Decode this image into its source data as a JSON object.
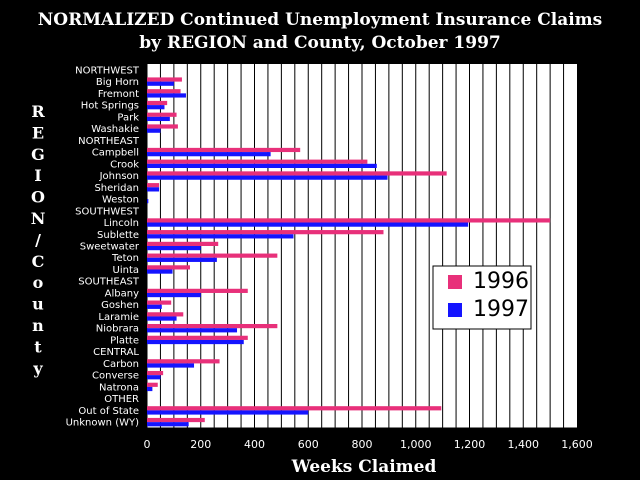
{
  "chart_data": {
    "type": "bar",
    "orientation": "horizontal",
    "title": "NORMALIZED Continued Unemployment Insurance Claims",
    "subtitle": "by REGION and County, October 1997",
    "xlabel": "Weeks Claimed",
    "ylabel": "REGION/County",
    "xlim": [
      0,
      1600
    ],
    "xticks": [
      "0",
      "200",
      "400",
      "600",
      "800",
      "1,000",
      "1,200",
      "1,400",
      "1,600"
    ],
    "grid": true,
    "legend_position": "right",
    "categories": [
      "NORTHWEST",
      "Big Horn",
      "Fremont",
      "Hot Springs",
      "Park",
      "Washakie",
      "NORTHEAST",
      "Campbell",
      "Crook",
      "Johnson",
      "Sheridan",
      "Weston",
      "SOUTHWEST",
      "Lincoln",
      "Sublette",
      "Sweetwater",
      "Teton",
      "Uinta",
      "SOUTHEAST",
      "Albany",
      "Goshen",
      "Laramie",
      "Niobrara",
      "Platte",
      "CENTRAL",
      "Carbon",
      "Converse",
      "Natrona",
      "OTHER",
      "Out of State",
      "Unknown (WY)"
    ],
    "series": [
      {
        "name": "1996",
        "color": "#e8307a",
        "values": [
          null,
          130,
          125,
          75,
          110,
          115,
          null,
          570,
          820,
          1115,
          45,
          0,
          null,
          1500,
          880,
          265,
          485,
          160,
          null,
          375,
          90,
          135,
          485,
          375,
          null,
          270,
          60,
          40,
          null,
          1095,
          215
        ]
      },
      {
        "name": "1997",
        "color": "#1414ff",
        "values": [
          null,
          100,
          145,
          65,
          85,
          50,
          null,
          460,
          855,
          895,
          45,
          5,
          null,
          1195,
          545,
          200,
          260,
          95,
          null,
          200,
          55,
          110,
          335,
          360,
          null,
          175,
          50,
          20,
          null,
          600,
          155
        ]
      }
    ]
  }
}
